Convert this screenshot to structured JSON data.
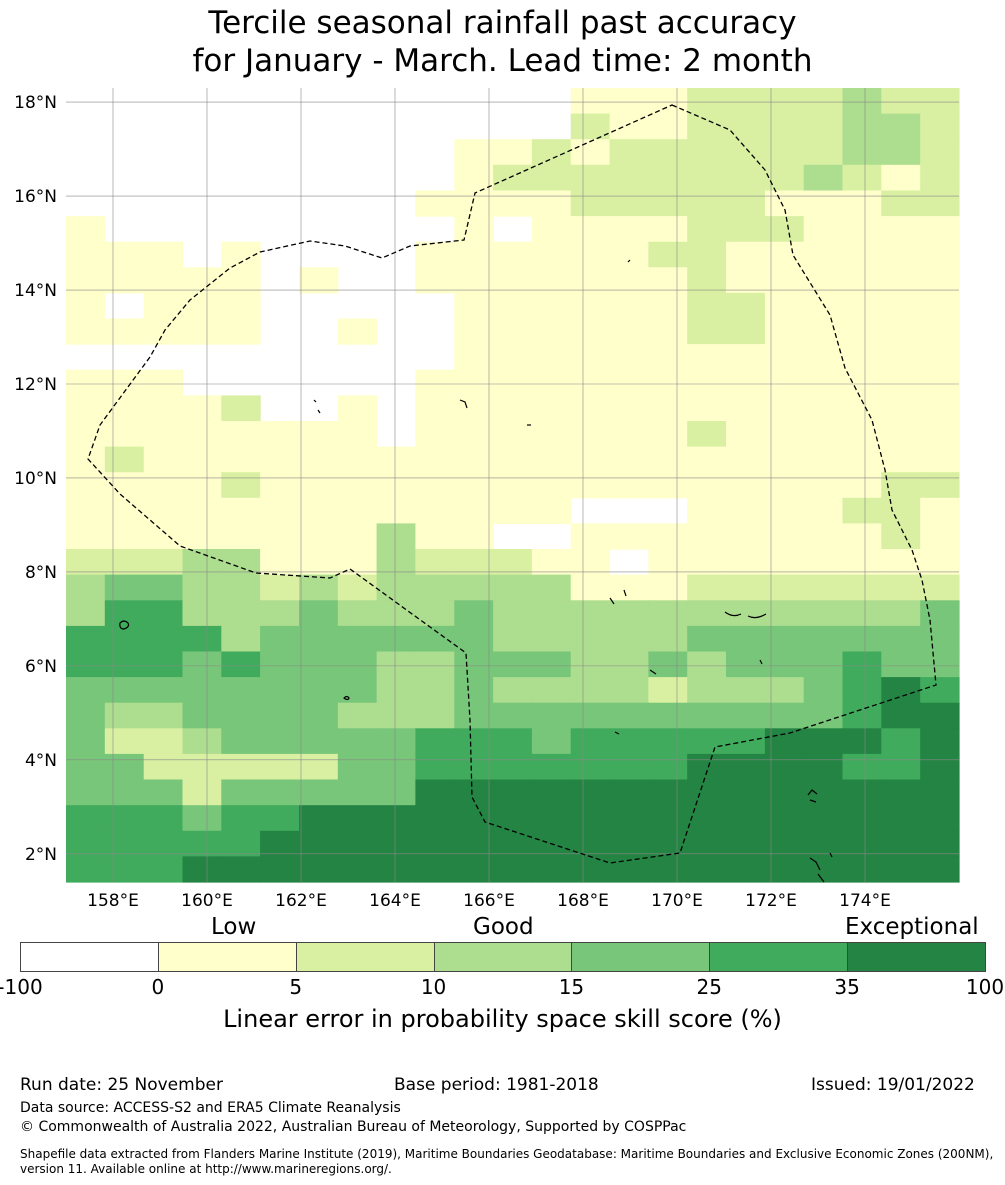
{
  "title_line1": "Tercile seasonal rainfall past accuracy",
  "title_line2": "for January - March. Lead time: 2 month",
  "map": {
    "lat_labels": [
      "18°N",
      "16°N",
      "14°N",
      "12°N",
      "10°N",
      "8°N",
      "6°N",
      "4°N",
      "2°N"
    ],
    "lon_labels": [
      "158°E",
      "160°E",
      "162°E",
      "164°E",
      "166°E",
      "168°E",
      "170°E",
      "172°E",
      "174°E"
    ],
    "lat_range": [
      1.4,
      18.3
    ],
    "lon_range": [
      157.0,
      176.0
    ]
  },
  "colorbar": {
    "categories": [
      "Low",
      "Good",
      "Exceptional"
    ],
    "ticks": [
      "-100",
      "0",
      "5",
      "10",
      "15",
      "25",
      "35",
      "100"
    ],
    "colors": [
      "#ffffff",
      "#ffffcc",
      "#d9f0a3",
      "#addd8e",
      "#78c679",
      "#41ab5d",
      "#238443"
    ],
    "title": "Linear error in probability space skill score (%)"
  },
  "footer": {
    "run_date": "Run date: 25 November",
    "base_period": "Base period: 1981-2018",
    "issued": "Issued: 19/01/2022",
    "data_source": "Data source: ACCESS-S2 and ERA5 Climate Reanalysis",
    "copyright": "© Commonwealth of Australia 2022, Australian Bureau of Meteorology, Supported by COSPPac",
    "shapefile": "Shapefile data extracted from Flanders Marine Institute (2019), Maritime Boundaries Geodatabase: Maritime Boundaries and Exclusive Economic Zones (200NM), version 11. Available online at http://www.marineregions.org/."
  }
}
